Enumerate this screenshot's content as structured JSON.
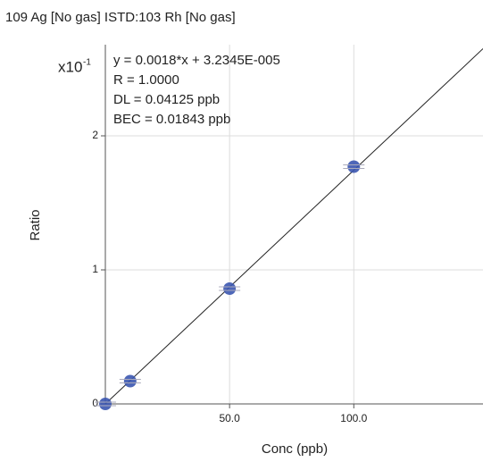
{
  "chart_data": {
    "type": "scatter",
    "title": "109 Ag [No gas] ISTD:103 Rh [No gas]",
    "xlabel": "Conc (ppb)",
    "ylabel": "Ratio",
    "y_multiplier": {
      "base": "x10",
      "exponent": "-1"
    },
    "annotations": [
      "y = 0.0018*x + 3.2345E-005",
      "R = 1.0000",
      "DL = 0.04125 ppb",
      "BEC = 0.01843 ppb"
    ],
    "x": [
      0,
      10,
      50,
      100
    ],
    "values": [
      0,
      0.17,
      0.86,
      1.77
    ],
    "color": "#3b56b0",
    "fit": {
      "x": [
        0,
        152
      ],
      "values": [
        0,
        2.65
      ],
      "color": "#222222"
    },
    "xlim": [
      0,
      152
    ],
    "ylim": [
      0,
      2.68
    ],
    "xticks": [
      {
        "value": 50,
        "label": "50.0"
      },
      {
        "value": 100,
        "label": "100.0"
      }
    ],
    "yticks": [
      0,
      1,
      2
    ],
    "grid": true
  }
}
